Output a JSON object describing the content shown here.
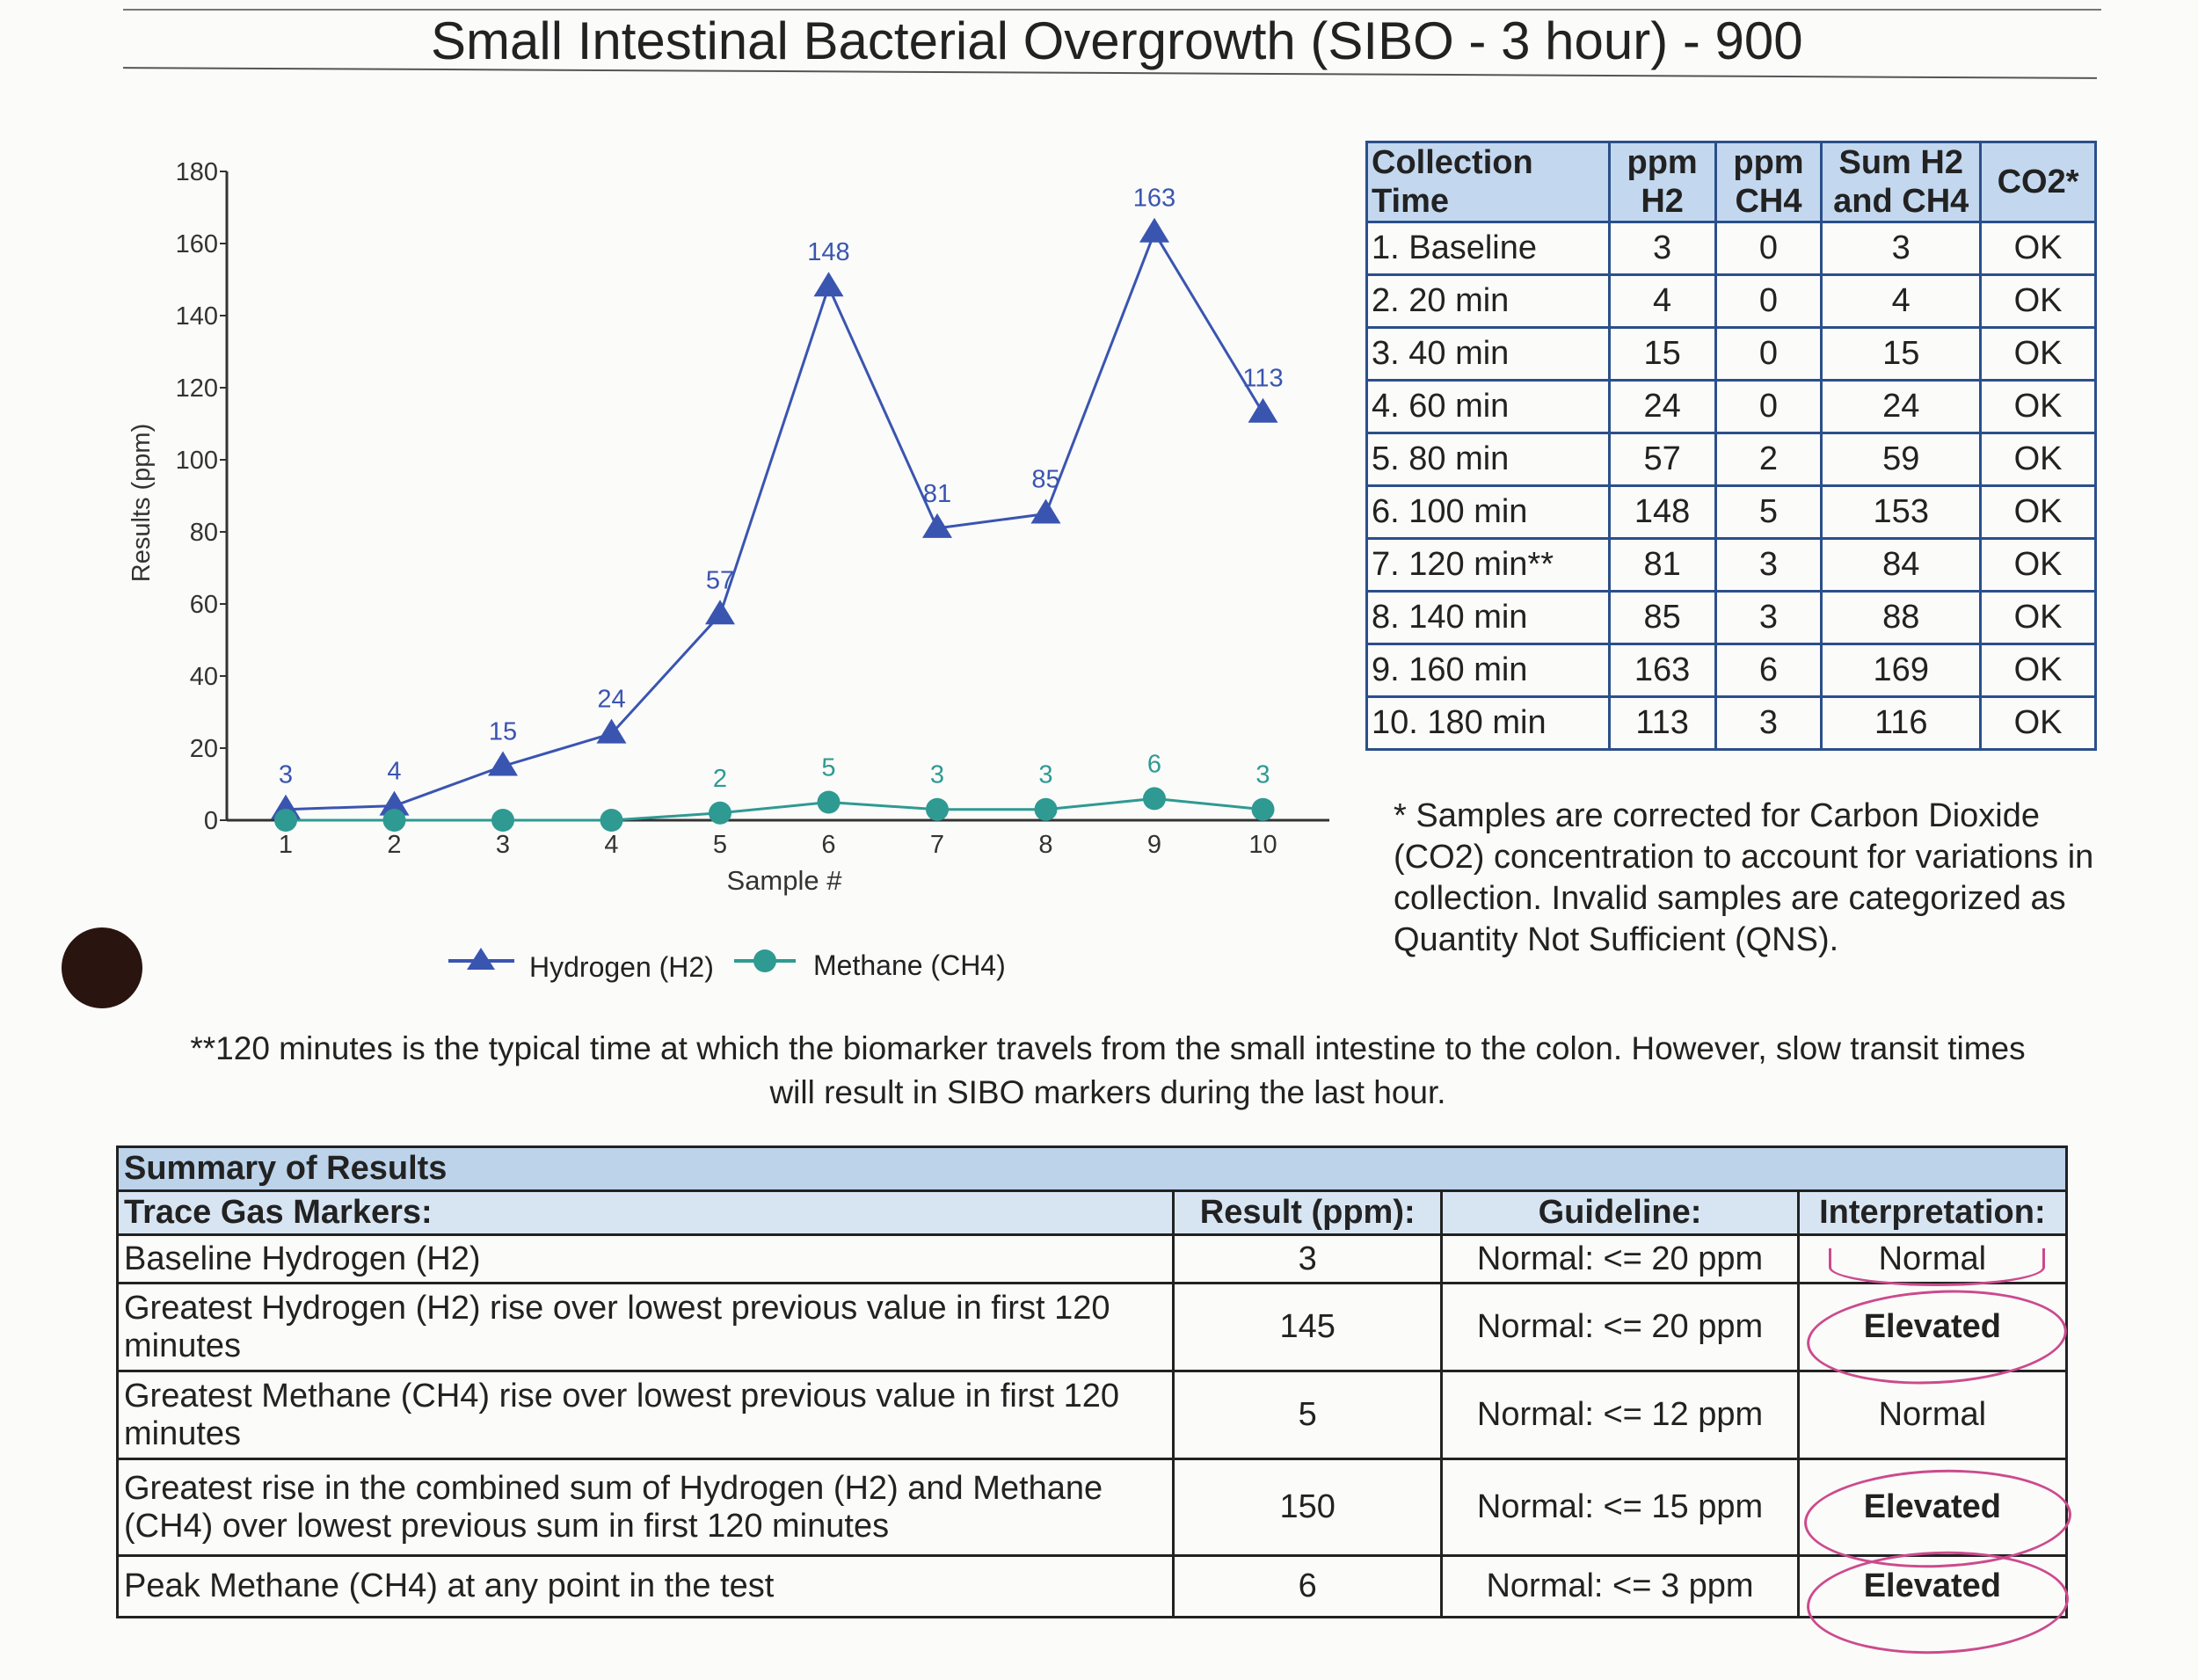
{
  "title": "Small Intestinal Bacterial Overgrowth (SIBO - 3 hour) - 900",
  "chart_data": {
    "type": "line",
    "title": "",
    "xlabel": "Sample #",
    "ylabel": "Results (ppm)",
    "ylim": [
      0,
      180
    ],
    "yticks": [
      0,
      20,
      40,
      60,
      80,
      100,
      120,
      140,
      160,
      180
    ],
    "x": [
      1,
      2,
      3,
      4,
      5,
      6,
      7,
      8,
      9,
      10
    ],
    "series": [
      {
        "name": "Hydrogen (H2)",
        "values": [
          3,
          4,
          15,
          24,
          57,
          148,
          81,
          85,
          163,
          113
        ],
        "color": "#3a55b0",
        "marker": "triangle"
      },
      {
        "name": "Methane (CH4)",
        "values": [
          0,
          0,
          0,
          0,
          2,
          5,
          3,
          3,
          6,
          3
        ],
        "color": "#2e9a92",
        "marker": "circle"
      }
    ]
  },
  "collection_table": {
    "headers": [
      "Collection Time",
      "ppm H2",
      "ppm CH4",
      "Sum H2 and CH4",
      "CO2*"
    ],
    "rows": [
      [
        "1. Baseline",
        "3",
        "0",
        "3",
        "OK"
      ],
      [
        "2. 20 min",
        "4",
        "0",
        "4",
        "OK"
      ],
      [
        "3. 40 min",
        "15",
        "0",
        "15",
        "OK"
      ],
      [
        "4. 60 min",
        "24",
        "0",
        "24",
        "OK"
      ],
      [
        "5. 80 min",
        "57",
        "2",
        "59",
        "OK"
      ],
      [
        "6. 100 min",
        "148",
        "5",
        "153",
        "OK"
      ],
      [
        "7. 120 min**",
        "81",
        "3",
        "84",
        "OK"
      ],
      [
        "8. 140 min",
        "85",
        "3",
        "88",
        "OK"
      ],
      [
        "9. 160 min",
        "163",
        "6",
        "169",
        "OK"
      ],
      [
        "10. 180 min",
        "113",
        "3",
        "116",
        "OK"
      ]
    ]
  },
  "co2_note": "* Samples are corrected for Carbon Dioxide (CO2) concentration to account for variations in collection. Invalid samples are categorized as Quantity Not Sufficient (QNS).",
  "footnote": "**120 minutes is the typical time at which the biomarker travels from the small intestine to the colon. However, slow transit times will result in SIBO markers during the last hour.",
  "summary": {
    "title": "Summary of Results",
    "headers": [
      "Trace Gas Markers:",
      "Result (ppm):",
      "Guideline:",
      "Interpretation:"
    ],
    "rows": [
      {
        "marker": "Baseline Hydrogen (H2)",
        "result": "3",
        "guideline": "Normal: <= 20 ppm",
        "interpretation": "Normal"
      },
      {
        "marker": "Greatest Hydrogen (H2) rise over lowest previous value in first 120 minutes",
        "result": "145",
        "guideline": "Normal: <= 20 ppm",
        "interpretation": "Elevated"
      },
      {
        "marker": "Greatest Methane (CH4) rise over lowest previous value in first 120 minutes",
        "result": "5",
        "guideline": "Normal: <= 12 ppm",
        "interpretation": "Normal"
      },
      {
        "marker": "Greatest rise in the combined sum of Hydrogen (H2) and Methane (CH4) over lowest previous sum in first 120 minutes",
        "result": "150",
        "guideline": "Normal: <= 15 ppm",
        "interpretation": "Elevated"
      },
      {
        "marker": "Peak Methane (CH4) at any point in the test",
        "result": "6",
        "guideline": "Normal: <= 3 ppm",
        "interpretation": "Elevated"
      }
    ]
  },
  "colors": {
    "accent": "#3a55b0",
    "methane": "#2e9a92",
    "header_bg": "#c3d8ef",
    "pen_circle": "#cc4a8c"
  }
}
